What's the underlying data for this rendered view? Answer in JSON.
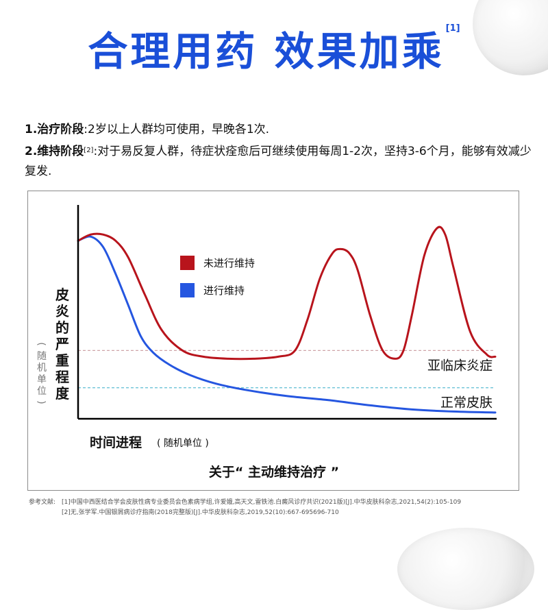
{
  "headline": {
    "text": "合理用药 效果加乘",
    "ref": "[1]"
  },
  "stages": [
    {
      "title": "1.治疗阶段",
      "ref": "",
      "text": ":2岁以上人群均可使用，早晚各1次."
    },
    {
      "title": "2.维持阶段",
      "ref": "[2]",
      "text": ":对于易反复人群，待症状痊愈后可继续使用每周1-2次，坚持3-6个月，能够有效减少复发."
    }
  ],
  "colors": {
    "headline": "#1a4fd8",
    "no_maintenance": "#b8141c",
    "maintenance": "#2556e0",
    "subclinical_line": "#cfa4a8",
    "normal_line": "#6cc3d6"
  },
  "chart_data": {
    "type": "line",
    "xlabel": "时间进程",
    "xlabel_unit": "( 随机单位 )",
    "ylabel": "皮炎的严重程度",
    "ylabel_unit": "( 随机单位 )",
    "xlim": [
      0,
      100
    ],
    "ylim": [
      0,
      100
    ],
    "grid": false,
    "legend_position": "top-center",
    "series": [
      {
        "name": "未进行维持",
        "color": "#b8141c",
        "x": [
          0,
          3,
          6,
          9,
          12,
          16,
          20,
          25,
          30,
          36,
          42,
          48,
          52,
          55,
          58,
          61,
          63,
          65,
          67,
          70,
          73,
          76,
          78,
          80,
          83,
          86,
          88,
          90,
          94,
          98,
          100
        ],
        "y": [
          86,
          89,
          89,
          86,
          78,
          60,
          43,
          33,
          30,
          29,
          29,
          30,
          33,
          48,
          68,
          80,
          82,
          80,
          72,
          50,
          33,
          29,
          33,
          50,
          79,
          92,
          89,
          73,
          42,
          31,
          30
        ]
      },
      {
        "name": "进行维持",
        "color": "#2556e0",
        "x": [
          0,
          3,
          6,
          9,
          12,
          15,
          18,
          22,
          27,
          33,
          40,
          50,
          60,
          70,
          80,
          90,
          100
        ],
        "y": [
          86,
          88,
          83,
          70,
          55,
          40,
          32,
          26,
          21,
          17,
          14,
          11,
          9,
          6.5,
          4.5,
          3.5,
          3
        ]
      }
    ],
    "reference_lines": [
      {
        "label": "亚临床炎症",
        "y": 33,
        "color": "#cfa4a8"
      },
      {
        "label": "正常皮肤",
        "y": 15,
        "color": "#6cc3d6"
      }
    ]
  },
  "chart_footer": "关于“ 主动维持治疗 ”",
  "references": {
    "label": "参考文献:",
    "items": [
      "[1]中国中西医结合学会皮肤性病专业委员会色素病学组,许爱娥,高天文,雷铁池.白癜风诊疗共识(2021版)[J].中华皮肤科杂志,2021,54(2):105-109",
      "[2]无,张学军.中国银屑病诊疗指南(2018完整版)[J].中华皮肤科杂志,2019,52(10):667-695696-710"
    ]
  }
}
